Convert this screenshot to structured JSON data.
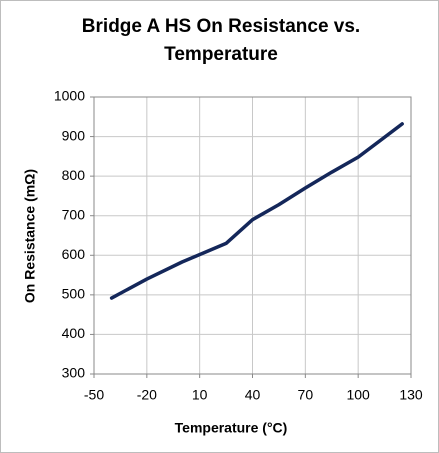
{
  "chart_data": {
    "type": "line",
    "title": "Bridge A HS On Resistance vs. Temperature",
    "x_label": "Temperature (°C)",
    "y_label": "On Resistance (mΩ)",
    "x": [
      -40,
      -20,
      0,
      25,
      40,
      55,
      70,
      85,
      100,
      125
    ],
    "series": [
      {
        "name": "On Resistance",
        "color": "#14275a",
        "values": [
          492,
          540,
          583,
          630,
          690,
          728,
          770,
          810,
          848,
          932
        ]
      }
    ],
    "xlim": [
      -50,
      130
    ],
    "xticks": [
      -50,
      -20,
      10,
      40,
      70,
      100,
      130
    ],
    "ylim": [
      300,
      1000
    ],
    "yticks": [
      300,
      400,
      500,
      600,
      700,
      800,
      900,
      1000
    ],
    "grid": true,
    "legend": false
  }
}
